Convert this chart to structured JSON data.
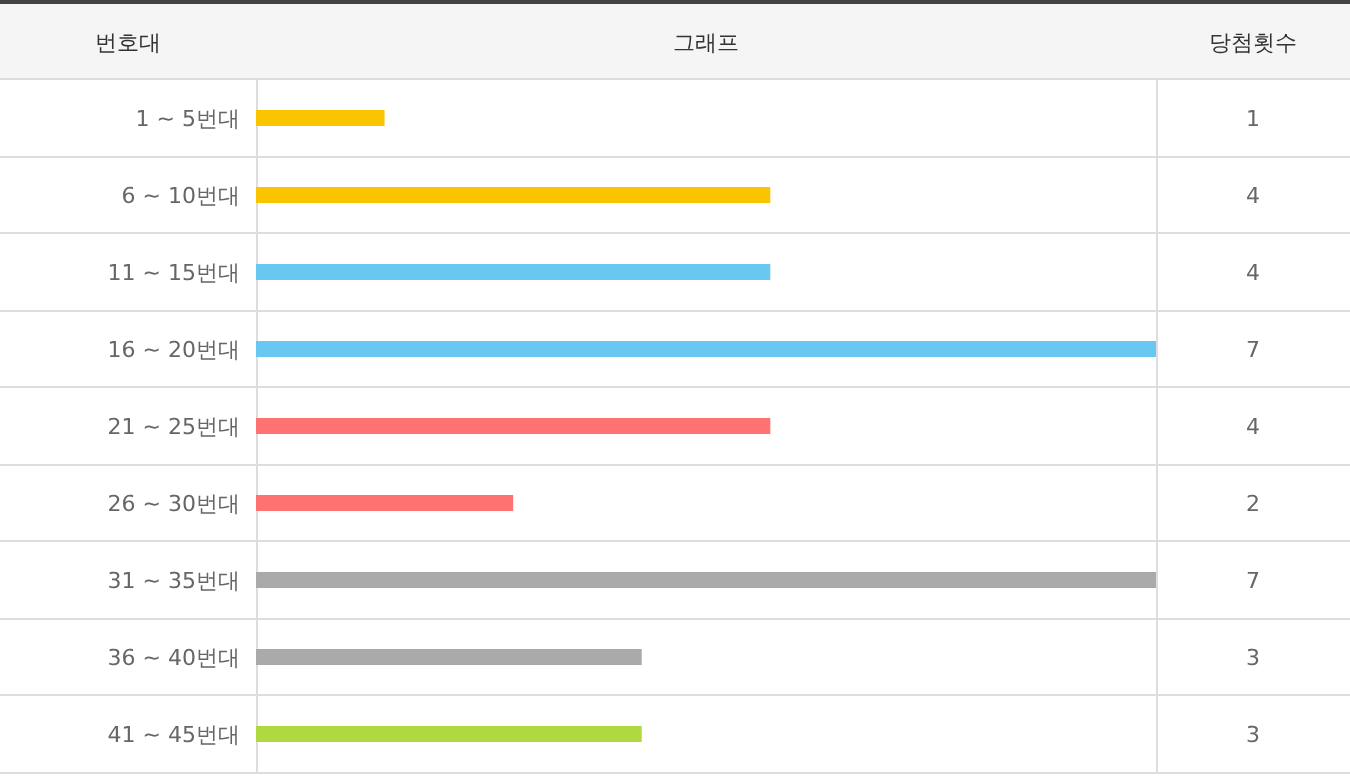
{
  "chart_data": {
    "type": "bar",
    "orientation": "horizontal",
    "ylabel": "번호대",
    "xlabel": "그래프",
    "annotations": [
      "당첨횟수"
    ],
    "categories": [
      "1 ~ 5번대",
      "6 ~ 10번대",
      "11 ~ 15번대",
      "16 ~ 20번대",
      "21 ~ 25번대",
      "26 ~ 30번대",
      "31 ~ 35번대",
      "36 ~ 40번대",
      "41 ~ 45번대"
    ],
    "values": [
      1,
      4,
      4,
      7,
      4,
      2,
      7,
      3,
      3
    ],
    "colors": [
      "#fbc400",
      "#fbc400",
      "#69c8f2",
      "#69c8f2",
      "#ff7272",
      "#ff7272",
      "#aaaaaa",
      "#aaaaaa",
      "#b0d840"
    ],
    "xlim": [
      0,
      7
    ],
    "data_labels": true
  }
}
